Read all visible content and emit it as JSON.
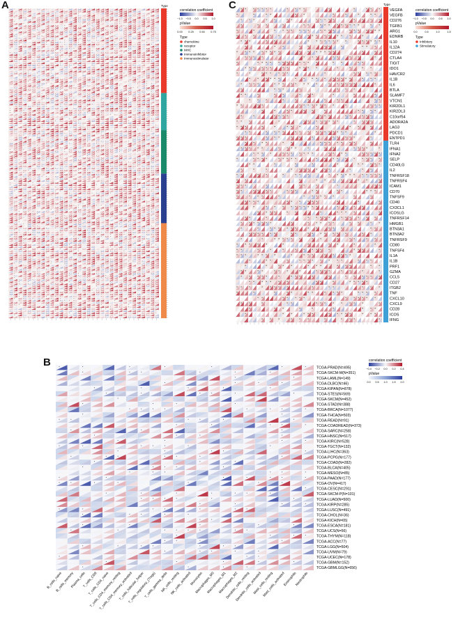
{
  "panel_labels": {
    "a": "A",
    "b": "B",
    "c": "C"
  },
  "colors": {
    "red": "#b2182b",
    "blue": "#2c3e9e",
    "chemokine": "#e8392a",
    "receptor": "#2fa6a0",
    "mhc": "#1b8a6b",
    "immunoinhibitor": "#2a3f8f",
    "immunostimulator": "#f08a4b",
    "inhibitory": "#e8392a",
    "stimulatory": "#3fa0d8"
  },
  "legend": {
    "corr_title": "correlation coefficient",
    "pvalue_title": "pValue",
    "type_title": "Type",
    "a_corr_ticks": [
      "−1.0",
      "−0.5",
      "0.0",
      "0.5",
      "1.0"
    ],
    "a_pvalue_ticks": [
      "0.00",
      "0.25",
      "0.50",
      "0.75"
    ],
    "a_types": [
      "chemokine",
      "receptor",
      "MHC",
      "Immunoinhibitor",
      "Immunostimulator"
    ],
    "b_corr_ticks": [
      "−0.4",
      "−0.2",
      "0.0",
      "0.2",
      "0.4"
    ],
    "b_pvalue_ticks": [
      "0.0",
      "0.5",
      "1.0",
      "1.5",
      "2.0"
    ],
    "c_corr_ticks": [
      "−1.0",
      "−0.5",
      "0.0",
      "0.5",
      "1.0"
    ],
    "c_pvalue_ticks": [
      "0.0",
      "0.5",
      "1.0",
      "1.5"
    ],
    "c_types": [
      "Inhibitory",
      "Stimulatory"
    ]
  },
  "chart_data": [
    {
      "panel": "A",
      "type": "heatmap",
      "rows": 150,
      "cols": 33,
      "type_column_label": "Type",
      "type_groups": [
        {
          "type": "chemokine",
          "rows": 41
        },
        {
          "type": "receptor",
          "rows": 18
        },
        {
          "type": "MHC",
          "rows": 21
        },
        {
          "type": "Immunoinhibitor",
          "rows": 24
        },
        {
          "type": "Immunostimulator",
          "rows": 46
        }
      ],
      "legend_placement": "top-right"
    },
    {
      "panel": "B",
      "type": "heatmap",
      "row_labels": [
        "TCGA-PRAD(N=495)",
        "TCGA-SKCM-M(N=351)",
        "TCGA-LAML(N=149)",
        "TCGA-DLBC(N=46)",
        "TCGA-KIPAN(N=878)",
        "TCGA-STES(N=569)",
        "TCGA-SKCM(N=452)",
        "TCGA-STAD(N=388)",
        "TCGA-BRCA(N=1077)",
        "TCGA-THCA(N=503)",
        "TCGA-READ(N=91)",
        "TCGA-COADREAD(N=373)",
        "TCGA-SARC(N=258)",
        "TCGA-HNSC(N=517)",
        "TCGA-KIRC(N=528)",
        "TCGA-TGCT(N=132)",
        "TCGA-LIHC(N=363)",
        "TCGA-PCPG(N=177)",
        "TCGA-COAD(N=282)",
        "TCGA-BLCA(N=405)",
        "TCGA-MESO(N=85)",
        "TCGA-PAAD(N=177)",
        "TCGA-OV(N=417)",
        "TCGA-CESC(N=291)",
        "TCGA-SKCM-P(N=101)",
        "TCGA-LUAD(N=500)",
        "TCGA-KIRP(N=285)",
        "TCGA-LUSC(N=491)",
        "TCGA-CHOL(N=36)",
        "TCGA-KICH(N=65)",
        "TCGA-ESCA(N=181)",
        "TCGA-UCS(N=56)",
        "TCGA-THYM(N=118)",
        "TCGA-ACC(N=77)",
        "TCGA-LGG(N=504)",
        "TCGA-UVM(N=79)",
        "TCGA-UCEC(N=178)",
        "TCGA-GBM(N=152)",
        "TCGA-GBMLGG(N=656)"
      ],
      "col_labels": [
        "B_cells_naive",
        "B_cells_memory",
        "Plasma_cells",
        "T_cells_CD8",
        "T_cells_CD4_naive",
        "T_cells_CD4_memory_resting",
        "T_cells_CD4_memory_activated",
        "T_cells_follicular_helper",
        "T_cells_regulatory_(Tregs)",
        "T_cells_gamma_delta",
        "NK_cells_resting",
        "NK_cells_activated",
        "Monocytes",
        "Macrophages_M0",
        "Macrophages_M1",
        "Macrophages_M2",
        "Dendritic_cells_resting",
        "Dendritic_cells_activated",
        "Mast_cells_resting",
        "Mast_cells_activated",
        "Eosinophils",
        "Neutrophils"
      ],
      "corr_range": [
        -0.4,
        0.4
      ],
      "pvalue_range": [
        0,
        2.0
      ],
      "legend_placement": "top-right"
    },
    {
      "panel": "C",
      "type": "heatmap",
      "row_labels": [
        "VEGFA",
        "VEGFB",
        "CD276",
        "TGFB1",
        "ARG1",
        "EDNRB",
        "IL10",
        "IL12A",
        "CD274",
        "CTLA4",
        "TIGIT",
        "IDO1",
        "HAVCR2",
        "IL1B",
        "IL6",
        "BTLA",
        "SLAMF7",
        "VTCN1",
        "KIR2DL1",
        "KIR2DL3",
        "C10orf54",
        "ADORA2A",
        "LAG3",
        "PDCD1",
        "ENTPD1",
        "TLR4",
        "IFNA1",
        "IFNA2",
        "SELP",
        "CD40LG",
        "IL2",
        "TNFRSF18",
        "TNFRSF4",
        "ICAM1",
        "CD70",
        "TNFSF9",
        "CD40",
        "CX3CL1",
        "ICOSLG",
        "TNFRSF14",
        "HMGB1",
        "BTN3A1",
        "BTN3A2",
        "TNFRSF9",
        "CD80",
        "TNFSF4",
        "IL1A",
        "IL1B",
        "PRF1",
        "GZMA",
        "CCL5",
        "CD27",
        "ITGB2",
        "TNF",
        "CXCL10",
        "CXCL9",
        "CD28",
        "ICOS",
        "IFNG"
      ],
      "cols": 35,
      "type_column_label": "Type",
      "type_groups": [
        {
          "type": "Inhibitory",
          "rows": 25
        },
        {
          "type": "Stimulatory",
          "rows": 34
        }
      ],
      "legend_placement": "top-right"
    }
  ]
}
